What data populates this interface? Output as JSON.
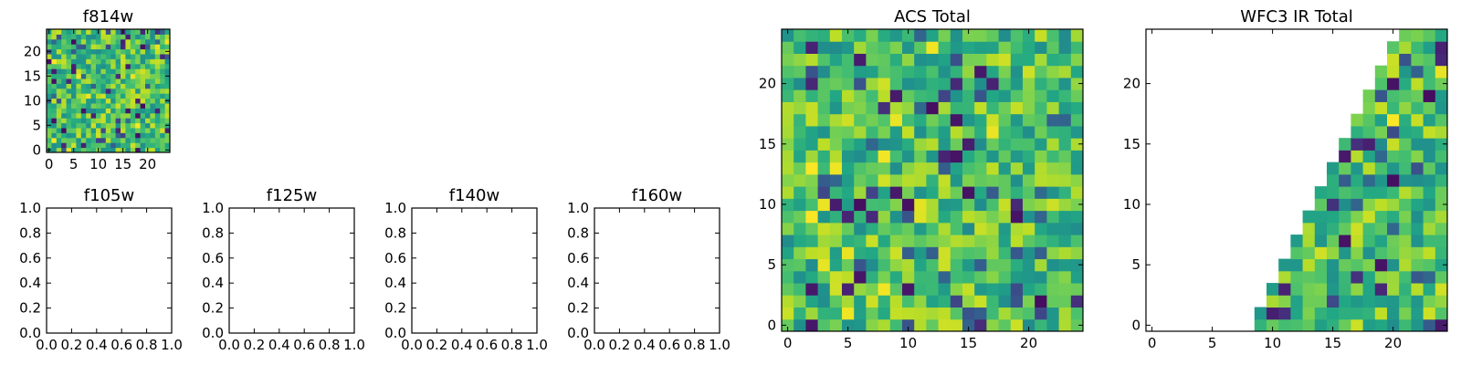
{
  "chart_data": [
    {
      "type": "heatmap",
      "title": "f814w",
      "grid_size": 25,
      "colormap": "viridis",
      "mask": "none",
      "xticks": [
        0,
        5,
        10,
        15,
        20
      ],
      "yticks": [
        0,
        5,
        10,
        15,
        20
      ],
      "xlim": [
        -0.5,
        24.5
      ],
      "ylim": [
        -0.5,
        24.5
      ]
    },
    {
      "type": "empty",
      "title": "f105w",
      "xticks": [
        "0.0",
        "0.2",
        "0.4",
        "0.6",
        "0.8",
        "1.0"
      ],
      "yticks": [
        "0.0",
        "0.2",
        "0.4",
        "0.6",
        "0.8",
        "1.0"
      ],
      "xlim": [
        0,
        1
      ],
      "ylim": [
        0,
        1
      ]
    },
    {
      "type": "empty",
      "title": "f125w",
      "xticks": [
        "0.0",
        "0.2",
        "0.4",
        "0.6",
        "0.8",
        "1.0"
      ],
      "yticks": [
        "0.0",
        "0.2",
        "0.4",
        "0.6",
        "0.8",
        "1.0"
      ],
      "xlim": [
        0,
        1
      ],
      "ylim": [
        0,
        1
      ]
    },
    {
      "type": "empty",
      "title": "f140w",
      "xticks": [
        "0.0",
        "0.2",
        "0.4",
        "0.6",
        "0.8",
        "1.0"
      ],
      "yticks": [
        "0.0",
        "0.2",
        "0.4",
        "0.6",
        "0.8",
        "1.0"
      ],
      "xlim": [
        0,
        1
      ],
      "ylim": [
        0,
        1
      ]
    },
    {
      "type": "empty",
      "title": "f160w",
      "xticks": [
        "0.0",
        "0.2",
        "0.4",
        "0.6",
        "0.8",
        "1.0"
      ],
      "yticks": [
        "0.0",
        "0.2",
        "0.4",
        "0.6",
        "0.8",
        "1.0"
      ],
      "xlim": [
        0,
        1
      ],
      "ylim": [
        0,
        1
      ]
    },
    {
      "type": "heatmap",
      "title": "ACS Total",
      "grid_size": 25,
      "colormap": "viridis",
      "mask": "none",
      "xticks": [
        0,
        5,
        10,
        15,
        20
      ],
      "yticks": [
        0,
        5,
        10,
        15,
        20
      ],
      "xlim": [
        -0.5,
        24.5
      ],
      "ylim": [
        -0.5,
        24.5
      ]
    },
    {
      "type": "heatmap",
      "title": "WFC3 IR Total",
      "grid_size": 25,
      "colormap": "viridis",
      "mask": "lower-right triangle: cells filled where x >= 9 and y <= 2*(x - 9) + 1",
      "xticks": [
        0,
        5,
        10,
        15,
        20
      ],
      "yticks": [
        0,
        5,
        10,
        15,
        20
      ],
      "xlim": [
        -0.5,
        24.5
      ],
      "ylim": [
        -0.5,
        24.5
      ]
    }
  ]
}
